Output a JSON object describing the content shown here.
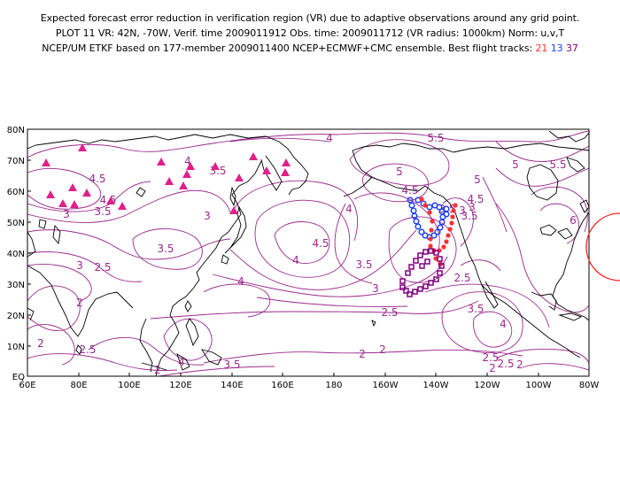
{
  "header": {
    "line1": "Expected forecast error reduction in verification region (VR) due to adaptive observations around any grid point.",
    "line2": "PLOT 11 VR: 42N, -70W, Verif. time 2009011912 Obs. time: 2009011712 (VR radius: 1000km) Norm: u,v,T",
    "line3_prefix": "NCEP/UM ETKF based on 177-member 2009011400 NCEP+ECMWF+CMC ensemble. Best flight tracks:",
    "track_labels": [
      "21",
      "13",
      "37"
    ],
    "track_colors": [
      "#ff3030",
      "#2040ff",
      "#800080"
    ]
  },
  "map": {
    "lat_labels": [
      "80N",
      "70N",
      "60N",
      "50N",
      "40N",
      "30N",
      "20N",
      "10N",
      "EQ"
    ],
    "lon_labels": [
      "60E",
      "80E",
      "100E",
      "120E",
      "140E",
      "160E",
      "180",
      "160W",
      "140W",
      "120W",
      "100W",
      "80W"
    ],
    "contour_labels": [
      "4",
      "5.5",
      "5",
      "4.5",
      "4",
      "4.5",
      "3.5",
      "3",
      "3.5",
      "3",
      "2.5",
      "3",
      "3.5",
      "4",
      "4",
      "4.5",
      "3.5",
      "3",
      "4.5",
      "4",
      "3.5",
      "3",
      "2.5",
      "2.5",
      "3.5",
      "4",
      "2",
      "2.5",
      "2",
      "4",
      "3.5",
      "2",
      "2",
      "2.5",
      "2",
      "5.5",
      "5",
      "6",
      "4.5",
      "5",
      "3.5",
      "3",
      "2",
      "2.5",
      "2"
    ],
    "contour_color": "#9c2a8e",
    "triangle_color": "#e0208a",
    "verification_region": {
      "lat": "42N",
      "lon": "-70W",
      "radius": "1000km"
    }
  }
}
